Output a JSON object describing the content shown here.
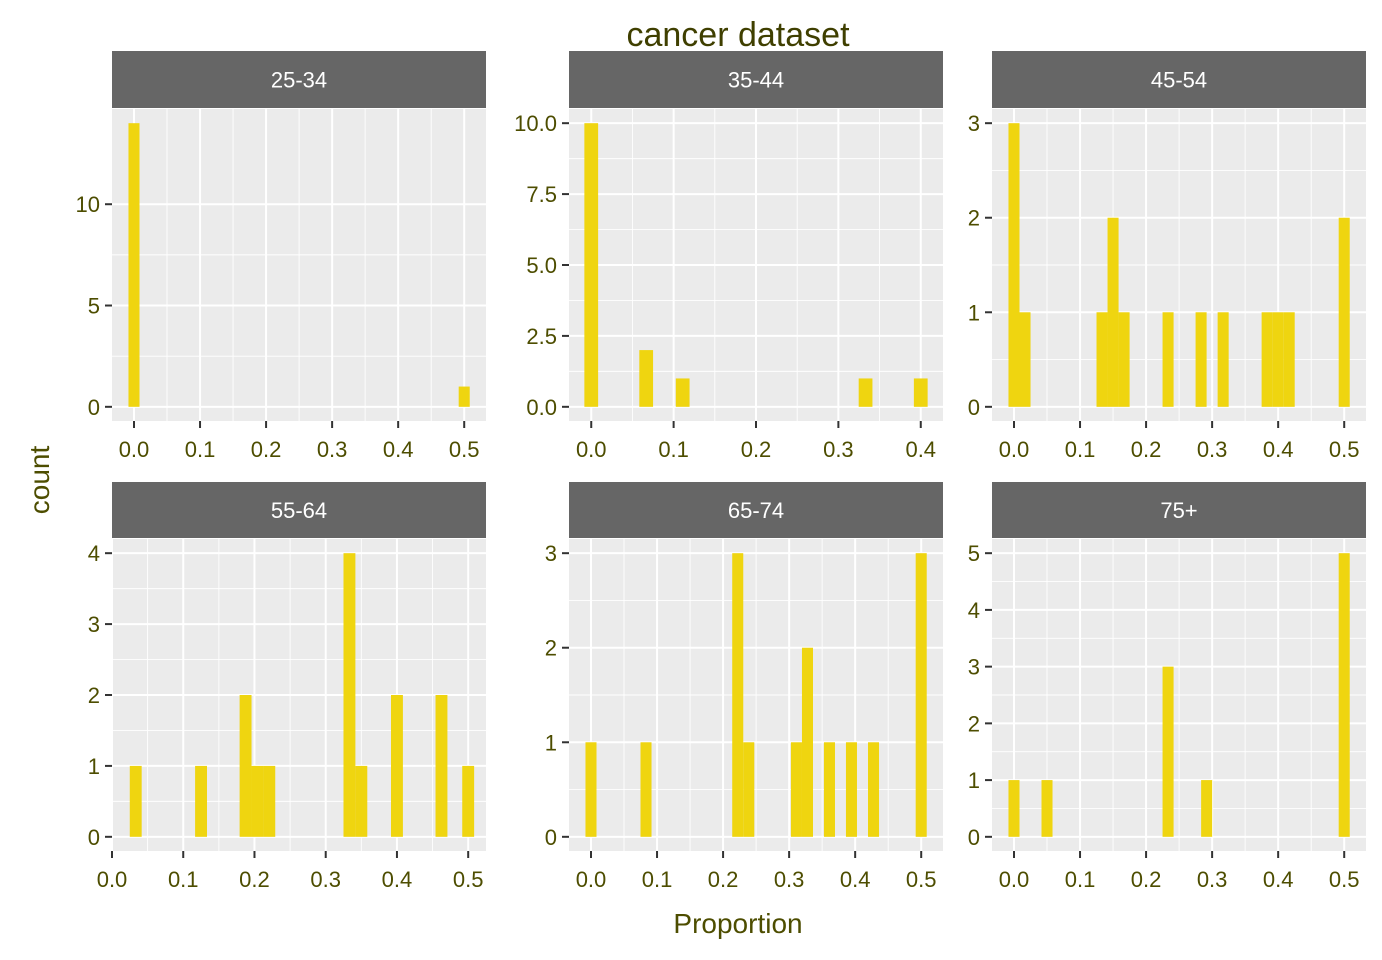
{
  "chart_data": {
    "type": "bar",
    "title": "cancer dataset",
    "xlabel": "Proportion",
    "ylabel": "count",
    "colors": {
      "bar": "#EFD510",
      "panel_bg": "#EBEBEB",
      "strip_bg": "#666666",
      "strip_text": "#FFFFFF",
      "grid": "#FFFFFF",
      "axis_text": "#4D4D00",
      "title_text": "#3F3F00"
    },
    "bin_width": 0.0167,
    "facets": [
      {
        "label": "25-34",
        "xlim": [
          -0.0333,
          0.533
        ],
        "ylim": [
          -0.7,
          14.7
        ],
        "xticks": [
          0.0,
          0.1,
          0.2,
          0.3,
          0.4,
          0.5
        ],
        "xtick_labels": [
          "0.0",
          "0.1",
          "0.2",
          "0.3",
          "0.4",
          "0.5"
        ],
        "yticks": [
          0,
          5,
          10
        ],
        "ytick_labels": [
          "0",
          "5",
          "10"
        ],
        "bars": [
          {
            "x": 0.0,
            "count": 14
          },
          {
            "x": 0.5,
            "count": 1
          }
        ]
      },
      {
        "label": "35-44",
        "xlim": [
          -0.027,
          0.427
        ],
        "ylim": [
          -0.5,
          10.5
        ],
        "xticks": [
          0.0,
          0.1,
          0.2,
          0.3,
          0.4
        ],
        "xtick_labels": [
          "0.0",
          "0.1",
          "0.2",
          "0.3",
          "0.4"
        ],
        "yticks": [
          0,
          2.5,
          5,
          7.5,
          10
        ],
        "ytick_labels": [
          "0.0",
          "2.5",
          "5.0",
          "7.5",
          "10.0"
        ],
        "bars": [
          {
            "x": 0.0,
            "count": 10
          },
          {
            "x": 0.0667,
            "count": 2
          },
          {
            "x": 0.111,
            "count": 1
          },
          {
            "x": 0.333,
            "count": 1
          },
          {
            "x": 0.4,
            "count": 1
          }
        ]
      },
      {
        "label": "45-54",
        "xlim": [
          -0.0333,
          0.533
        ],
        "ylim": [
          -0.15,
          3.15
        ],
        "xticks": [
          0.0,
          0.1,
          0.2,
          0.3,
          0.4,
          0.5
        ],
        "xtick_labels": [
          "0.0",
          "0.1",
          "0.2",
          "0.3",
          "0.4",
          "0.5"
        ],
        "yticks": [
          0,
          1,
          2,
          3
        ],
        "ytick_labels": [
          "0",
          "1",
          "2",
          "3"
        ],
        "bars": [
          {
            "x": 0.0,
            "count": 3
          },
          {
            "x": 0.0167,
            "count": 1
          },
          {
            "x": 0.1333,
            "count": 1
          },
          {
            "x": 0.15,
            "count": 2
          },
          {
            "x": 0.1667,
            "count": 1
          },
          {
            "x": 0.2333,
            "count": 1
          },
          {
            "x": 0.2833,
            "count": 1
          },
          {
            "x": 0.3167,
            "count": 1
          },
          {
            "x": 0.3833,
            "count": 1
          },
          {
            "x": 0.4,
            "count": 1
          },
          {
            "x": 0.4167,
            "count": 1
          },
          {
            "x": 0.5,
            "count": 2
          }
        ]
      },
      {
        "label": "55-64",
        "xlim": [
          0.0,
          0.525
        ],
        "ylim": [
          -0.2,
          4.2
        ],
        "xticks": [
          0.0,
          0.1,
          0.2,
          0.3,
          0.4,
          0.5
        ],
        "xtick_labels": [
          "0.0",
          "0.1",
          "0.2",
          "0.3",
          "0.4",
          "0.5"
        ],
        "yticks": [
          0,
          1,
          2,
          3,
          4
        ],
        "ytick_labels": [
          "0",
          "1",
          "2",
          "3",
          "4"
        ],
        "bars": [
          {
            "x": 0.0333,
            "count": 1
          },
          {
            "x": 0.125,
            "count": 1
          },
          {
            "x": 0.1875,
            "count": 2
          },
          {
            "x": 0.2042,
            "count": 1
          },
          {
            "x": 0.2208,
            "count": 1
          },
          {
            "x": 0.3333,
            "count": 4
          },
          {
            "x": 0.35,
            "count": 1
          },
          {
            "x": 0.4,
            "count": 2
          },
          {
            "x": 0.4625,
            "count": 2
          },
          {
            "x": 0.5,
            "count": 1
          }
        ]
      },
      {
        "label": "65-74",
        "xlim": [
          -0.0333,
          0.533
        ],
        "ylim": [
          -0.15,
          3.15
        ],
        "xticks": [
          0.0,
          0.1,
          0.2,
          0.3,
          0.4,
          0.5
        ],
        "xtick_labels": [
          "0.0",
          "0.1",
          "0.2",
          "0.3",
          "0.4",
          "0.5"
        ],
        "yticks": [
          0,
          1,
          2,
          3
        ],
        "ytick_labels": [
          "0",
          "1",
          "2",
          "3"
        ],
        "bars": [
          {
            "x": 0.0,
            "count": 1
          },
          {
            "x": 0.0833,
            "count": 1
          },
          {
            "x": 0.2222,
            "count": 3
          },
          {
            "x": 0.2389,
            "count": 1
          },
          {
            "x": 0.3111,
            "count": 1
          },
          {
            "x": 0.3278,
            "count": 2
          },
          {
            "x": 0.3611,
            "count": 1
          },
          {
            "x": 0.3944,
            "count": 1
          },
          {
            "x": 0.4278,
            "count": 1
          },
          {
            "x": 0.5,
            "count": 3
          }
        ]
      },
      {
        "label": "75+",
        "xlim": [
          -0.0333,
          0.533
        ],
        "ylim": [
          -0.25,
          5.25
        ],
        "xticks": [
          0.0,
          0.1,
          0.2,
          0.3,
          0.4,
          0.5
        ],
        "xtick_labels": [
          "0.0",
          "0.1",
          "0.2",
          "0.3",
          "0.4",
          "0.5"
        ],
        "yticks": [
          0,
          1,
          2,
          3,
          4,
          5
        ],
        "ytick_labels": [
          "0",
          "1",
          "2",
          "3",
          "4",
          "5"
        ],
        "bars": [
          {
            "x": 0.0,
            "count": 1
          },
          {
            "x": 0.05,
            "count": 1
          },
          {
            "x": 0.2333,
            "count": 3
          },
          {
            "x": 0.2917,
            "count": 1
          },
          {
            "x": 0.5,
            "count": 5
          }
        ]
      }
    ]
  }
}
